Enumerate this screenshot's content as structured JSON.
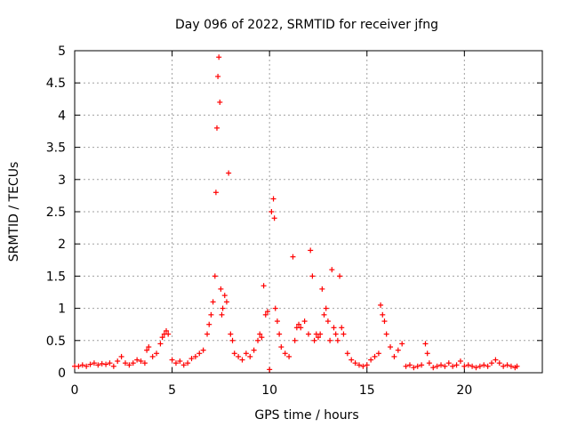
{
  "chart_data": {
    "type": "scatter",
    "title": "Day 096 of 2022, SRMTID for receiver jfng",
    "xlabel": "GPS time / hours",
    "ylabel": "SRMTID / TECUs",
    "xlim": [
      0,
      24
    ],
    "ylim": [
      0,
      5
    ],
    "xticks": [
      0,
      5,
      10,
      15,
      20
    ],
    "yticks": [
      0,
      0.5,
      1,
      1.5,
      2,
      2.5,
      3,
      3.5,
      4,
      4.5,
      5
    ],
    "xtick_labels": [
      "0",
      "5",
      "10",
      "15",
      "20"
    ],
    "ytick_labels": [
      "0",
      "0.5",
      "1",
      "1.5",
      "2",
      "2.5",
      "3",
      "3.5",
      "4",
      "4.5",
      "5"
    ],
    "grid": true,
    "marker": "plus",
    "color": "#ff0000",
    "series": [
      {
        "name": "SRMTID",
        "x": [
          0.0,
          0.2,
          0.4,
          0.6,
          0.8,
          1.0,
          1.2,
          1.4,
          1.6,
          1.8,
          2.0,
          2.2,
          2.4,
          2.6,
          2.8,
          3.0,
          3.2,
          3.4,
          3.6,
          3.7,
          3.8,
          4.0,
          4.2,
          4.4,
          4.5,
          4.6,
          4.7,
          4.8,
          5.0,
          5.2,
          5.4,
          5.6,
          5.8,
          6.0,
          6.2,
          6.4,
          6.6,
          6.8,
          6.9,
          7.0,
          7.1,
          7.2,
          7.25,
          7.3,
          7.35,
          7.4,
          7.45,
          7.5,
          7.55,
          7.6,
          7.7,
          7.8,
          7.9,
          8.0,
          8.1,
          8.2,
          8.4,
          8.6,
          8.8,
          9.0,
          9.2,
          9.4,
          9.5,
          9.6,
          9.7,
          9.8,
          9.9,
          10.0,
          10.1,
          10.2,
          10.25,
          10.3,
          10.4,
          10.5,
          10.6,
          10.8,
          11.0,
          11.2,
          11.3,
          11.4,
          11.5,
          11.6,
          11.8,
          12.0,
          12.1,
          12.2,
          12.3,
          12.4,
          12.5,
          12.6,
          12.7,
          12.8,
          12.9,
          13.0,
          13.1,
          13.2,
          13.3,
          13.4,
          13.5,
          13.6,
          13.7,
          13.8,
          14.0,
          14.2,
          14.4,
          14.6,
          14.8,
          15.0,
          15.2,
          15.4,
          15.6,
          15.7,
          15.8,
          15.9,
          16.0,
          16.2,
          16.4,
          16.6,
          16.8,
          17.0,
          17.2,
          17.4,
          17.6,
          17.8,
          18.0,
          18.1,
          18.2,
          18.4,
          18.6,
          18.8,
          19.0,
          19.2,
          19.4,
          19.6,
          19.8,
          20.0,
          20.2,
          20.4,
          20.6,
          20.8,
          21.0,
          21.2,
          21.4,
          21.6,
          21.8,
          22.0,
          22.2,
          22.4,
          22.6,
          22.7
        ],
        "values": [
          0.1,
          0.1,
          0.12,
          0.1,
          0.13,
          0.15,
          0.12,
          0.14,
          0.13,
          0.15,
          0.1,
          0.18,
          0.25,
          0.15,
          0.12,
          0.15,
          0.2,
          0.18,
          0.15,
          0.35,
          0.4,
          0.25,
          0.3,
          0.45,
          0.55,
          0.6,
          0.65,
          0.6,
          0.2,
          0.15,
          0.18,
          0.12,
          0.15,
          0.22,
          0.25,
          0.3,
          0.35,
          0.6,
          0.75,
          0.9,
          1.1,
          1.5,
          2.8,
          3.8,
          4.6,
          4.9,
          4.2,
          1.3,
          0.9,
          1.0,
          1.2,
          1.1,
          3.1,
          0.6,
          0.5,
          0.3,
          0.25,
          0.2,
          0.3,
          0.25,
          0.35,
          0.5,
          0.6,
          0.55,
          1.35,
          0.9,
          0.95,
          0.05,
          2.5,
          2.7,
          2.4,
          1.0,
          0.8,
          0.6,
          0.4,
          0.3,
          0.25,
          1.8,
          0.5,
          0.7,
          0.75,
          0.7,
          0.8,
          0.6,
          1.9,
          1.5,
          0.5,
          0.6,
          0.55,
          0.6,
          1.3,
          0.9,
          1.0,
          0.8,
          0.5,
          1.6,
          0.7,
          0.6,
          0.5,
          1.5,
          0.7,
          0.6,
          0.3,
          0.2,
          0.15,
          0.12,
          0.1,
          0.12,
          0.2,
          0.25,
          0.3,
          1.05,
          0.9,
          0.8,
          0.6,
          0.4,
          0.25,
          0.35,
          0.45,
          0.1,
          0.12,
          0.08,
          0.1,
          0.12,
          0.45,
          0.3,
          0.15,
          0.08,
          0.1,
          0.12,
          0.1,
          0.15,
          0.1,
          0.12,
          0.18,
          0.1,
          0.12,
          0.1,
          0.08,
          0.1,
          0.12,
          0.1,
          0.15,
          0.2,
          0.15,
          0.1,
          0.12,
          0.1,
          0.08,
          0.1
        ]
      }
    ]
  }
}
